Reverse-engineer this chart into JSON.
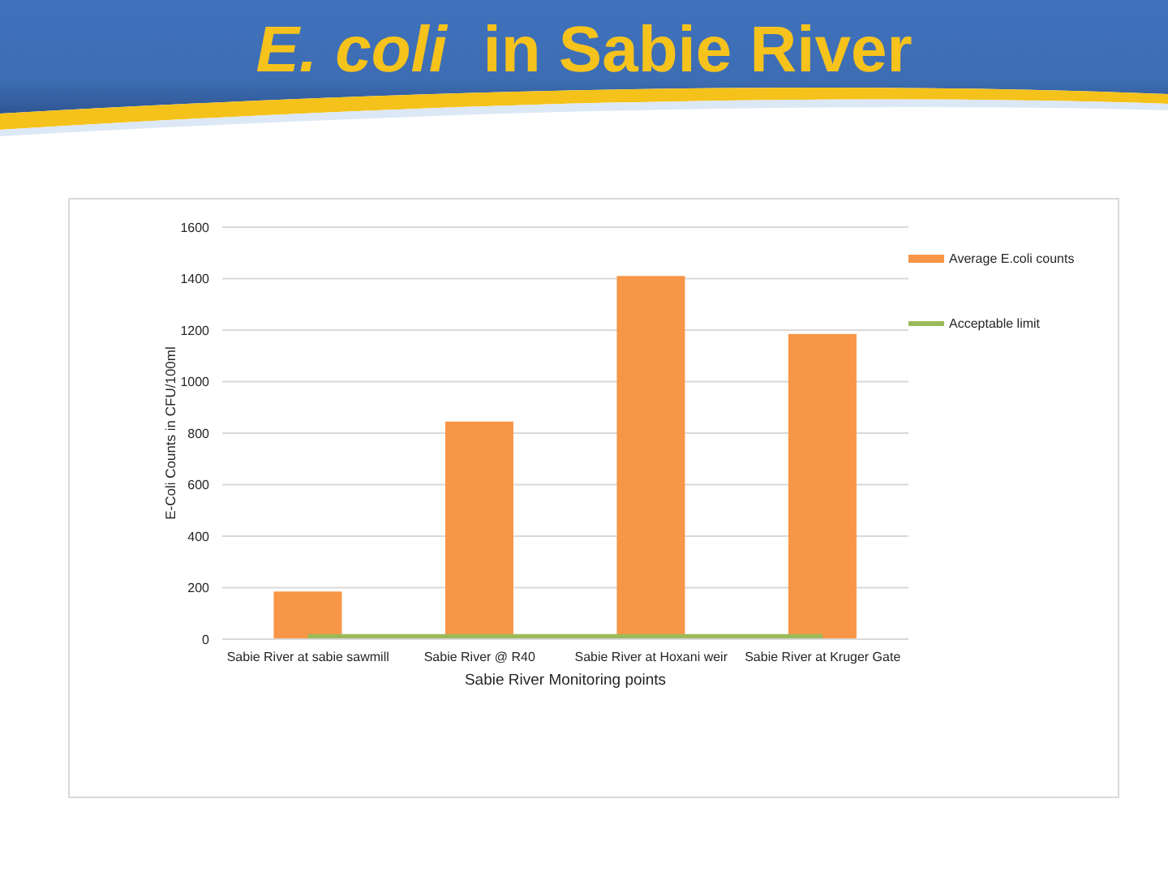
{
  "chart_data": {
    "type": "bar",
    "title": "E. coli in Sabie River",
    "xlabel": "Sabie River Monitoring points",
    "ylabel": "E-Coli Counts in CFU/100ml",
    "categories": [
      "Sabie River at sabie sawmill",
      "Sabie River @ R40",
      "Sabie River at Hoxani weir",
      "Sabie River at Kruger Gate"
    ],
    "series": [
      {
        "name": "Average E.coli counts",
        "color": "#f79646",
        "values": [
          185,
          845,
          1410,
          1185
        ]
      },
      {
        "name": "Acceptable limit",
        "type": "line",
        "color": "#9bbb59",
        "values": [
          10,
          10,
          10,
          10
        ]
      }
    ],
    "ylim": [
      0,
      1600
    ],
    "yticks": [
      0,
      200,
      400,
      600,
      800,
      1000,
      1200,
      1400,
      1600
    ],
    "grid": "y",
    "legend": "top right"
  }
}
